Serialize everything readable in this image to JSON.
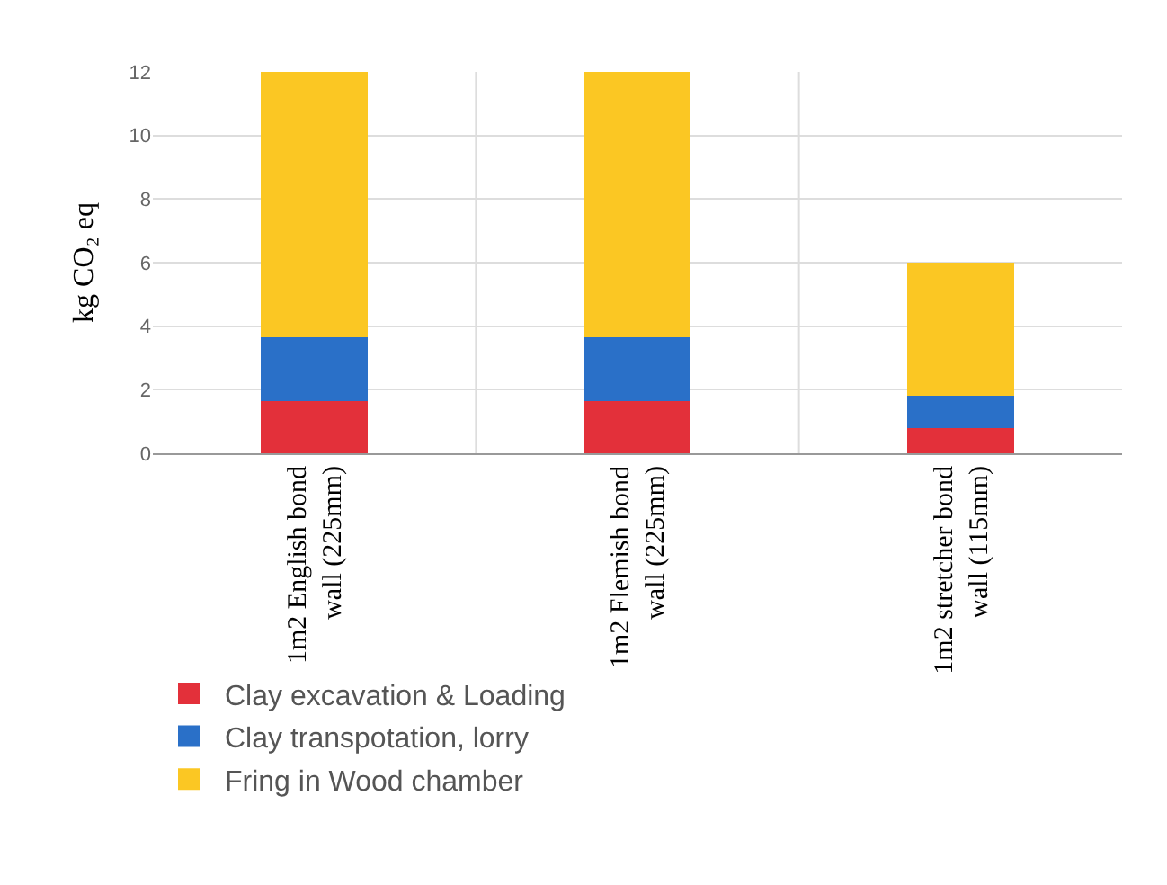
{
  "chart_data": {
    "type": "bar",
    "stacked": true,
    "ylabel": "kg CO₂ eq",
    "categories": [
      "1m2 English bond\nwall (225mm)",
      "1m2 Flemish bond\nwall (225mm)",
      "1m2 stretcher bond\nwall (115mm)"
    ],
    "series": [
      {
        "name": "Clay excavation & Loading",
        "color": "#e3303a",
        "values": [
          1.65,
          1.65,
          0.8
        ]
      },
      {
        "name": "Clay transpotation, lorry",
        "color": "#2a70c8",
        "values": [
          2.0,
          2.0,
          1.0
        ]
      },
      {
        "name": "Fring in Wood chamber",
        "color": "#fbc723",
        "values": [
          8.35,
          8.35,
          4.2
        ]
      }
    ],
    "ylim": [
      0,
      12
    ],
    "yticks": [
      0,
      2,
      4,
      6,
      8,
      10,
      12
    ],
    "grid": true,
    "legend": "bottom left"
  }
}
